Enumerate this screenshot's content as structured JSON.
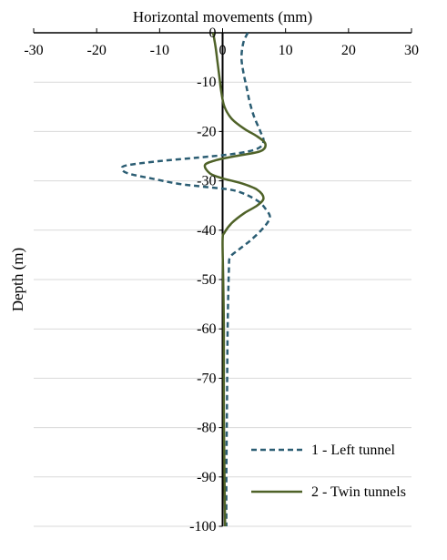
{
  "chart_data": {
    "type": "line",
    "xlabel": "Horizontal movements (mm)",
    "ylabel": "Depth (m)",
    "xlim": [
      -30,
      30
    ],
    "ylim": [
      -100,
      0
    ],
    "x_ticks": [
      -30,
      -20,
      -10,
      0,
      10,
      20,
      30
    ],
    "y_ticks": [
      0,
      -10,
      -20,
      -30,
      -40,
      -50,
      -60,
      -70,
      -80,
      -90,
      -100
    ],
    "grid": "horizontal",
    "x_axis_position": "top",
    "legend_position": "bottom-right",
    "series": [
      {
        "name": "1 - Left tunnel",
        "color": "#2b5d73",
        "style": "dashed",
        "points": [
          [
            4.0,
            0
          ],
          [
            3.3,
            -2
          ],
          [
            3.0,
            -5
          ],
          [
            3.3,
            -8
          ],
          [
            3.8,
            -11
          ],
          [
            4.3,
            -14
          ],
          [
            5.0,
            -17
          ],
          [
            6.0,
            -20
          ],
          [
            6.5,
            -22
          ],
          [
            5.5,
            -23.5
          ],
          [
            2.0,
            -24.5
          ],
          [
            -4.0,
            -25.3
          ],
          [
            -10.0,
            -26
          ],
          [
            -15.0,
            -26.8
          ],
          [
            -16.0,
            -27.5
          ],
          [
            -15.0,
            -28.5
          ],
          [
            -11.0,
            -29.6
          ],
          [
            -7.0,
            -30.6
          ],
          [
            -3.0,
            -31.2
          ],
          [
            2.0,
            -32
          ],
          [
            5.5,
            -34
          ],
          [
            7.0,
            -36
          ],
          [
            7.5,
            -37.5
          ],
          [
            6.5,
            -39.5
          ],
          [
            4.5,
            -42
          ],
          [
            2.5,
            -44
          ],
          [
            1.2,
            -45.5
          ],
          [
            1.0,
            -48
          ],
          [
            0.8,
            -60
          ],
          [
            0.7,
            -75
          ],
          [
            0.6,
            -90
          ],
          [
            0.6,
            -100
          ]
        ]
      },
      {
        "name": "2 - Twin tunnels",
        "color": "#4f6228",
        "style": "solid",
        "points": [
          [
            -1.5,
            0
          ],
          [
            -1.1,
            -3
          ],
          [
            -0.8,
            -6
          ],
          [
            -0.5,
            -9
          ],
          [
            -0.2,
            -12
          ],
          [
            0.3,
            -15
          ],
          [
            1.5,
            -17.5
          ],
          [
            3.5,
            -19.5
          ],
          [
            5.5,
            -21
          ],
          [
            6.8,
            -22.5
          ],
          [
            6.0,
            -24
          ],
          [
            2.0,
            -25
          ],
          [
            -1.0,
            -25.8
          ],
          [
            -2.8,
            -26.8
          ],
          [
            -2.0,
            -28.5
          ],
          [
            0.0,
            -29.5
          ],
          [
            3.0,
            -30.5
          ],
          [
            5.5,
            -31.8
          ],
          [
            6.5,
            -33.5
          ],
          [
            5.5,
            -35
          ],
          [
            3.5,
            -36.5
          ],
          [
            1.5,
            -38.5
          ],
          [
            0.3,
            -40.5
          ],
          [
            0.0,
            -42
          ],
          [
            0.1,
            -50
          ],
          [
            0.2,
            -60
          ],
          [
            0.2,
            -75
          ],
          [
            0.3,
            -90
          ],
          [
            0.4,
            -100
          ]
        ]
      }
    ]
  }
}
